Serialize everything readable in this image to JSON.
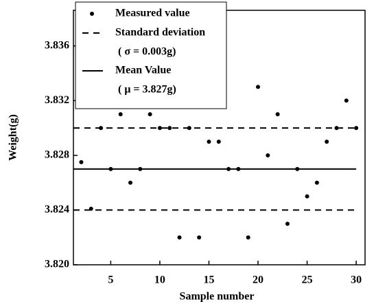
{
  "chart_data": {
    "type": "scatter",
    "xlabel": "Sample number",
    "ylabel": "Weight(g)",
    "xlim": [
      1.2,
      30.9
    ],
    "ylim": [
      3.82,
      3.8386
    ],
    "xticks": [
      5,
      10,
      15,
      20,
      25,
      30
    ],
    "yticks": [
      {
        "value": 3.82,
        "label": "3.820"
      },
      3.824,
      3.828,
      3.832,
      3.836
    ],
    "series": [
      {
        "name": "Measured value",
        "color": "#000000",
        "x": [
          2,
          3,
          4,
          5,
          6,
          7,
          8,
          9,
          10,
          11,
          12,
          13,
          14,
          15,
          16,
          17,
          18,
          19,
          20,
          21,
          22,
          23,
          24,
          25,
          26,
          27,
          28,
          29,
          30
        ],
        "values": [
          3.8275,
          3.8241,
          3.83,
          3.827,
          3.831,
          3.826,
          3.827,
          3.831,
          3.83,
          3.83,
          3.822,
          3.83,
          3.822,
          3.829,
          3.829,
          3.827,
          3.827,
          3.822,
          3.833,
          3.828,
          3.831,
          3.823,
          3.827,
          3.825,
          3.826,
          3.829,
          3.83,
          3.832,
          3.83
        ]
      },
      {
        "name": "Standard deviation",
        "note": "( σ = 0.003g)",
        "style": "dashed",
        "color": "#000000",
        "values": [
          3.83,
          3.824
        ]
      },
      {
        "name": "Mean Value",
        "note": "( μ = 3.827g)",
        "style": "solid",
        "color": "#000000",
        "values": [
          3.827
        ]
      }
    ]
  }
}
